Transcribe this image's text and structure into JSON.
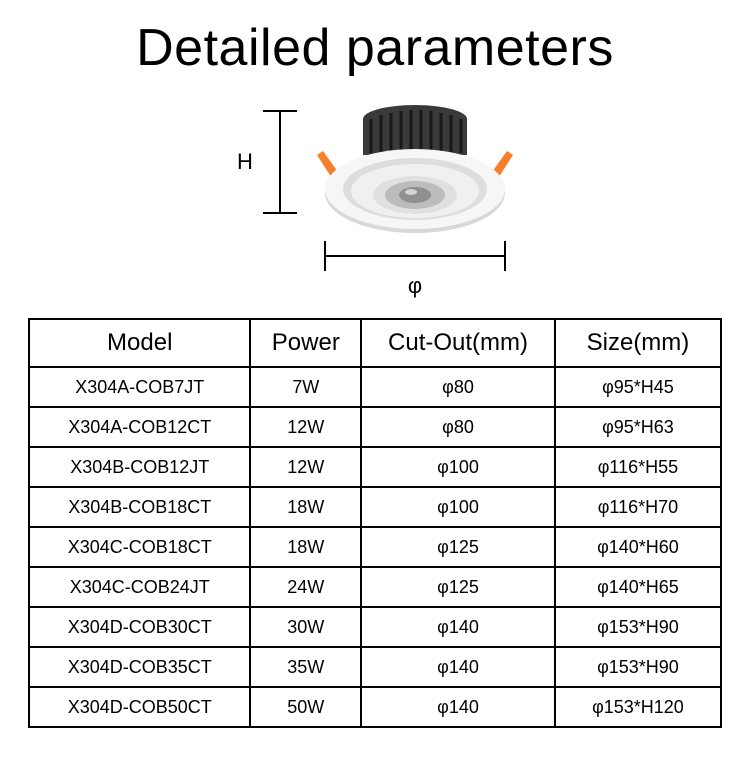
{
  "title": "Detailed parameters",
  "diagram": {
    "height_label": "H",
    "diameter_label": "φ",
    "colors": {
      "heatsink": "#3a3a3a",
      "heatsink_fin": "#2a2a2a",
      "ring_outer": "#f4f4f4",
      "ring_shadow": "#d0d0d0",
      "ring_inner": "#ffffff",
      "lens_outer": "#e8e8e8",
      "lens_inner": "#bfbfbf",
      "lens_center": "#9a9a9a",
      "clip": "#f57f2a",
      "dim_line": "#000000"
    }
  },
  "table": {
    "headers": {
      "model": "Model",
      "power": "Power",
      "cutout": "Cut-Out(mm)",
      "size": "Size(mm)"
    },
    "rows": [
      {
        "model": "X304A-COB7JT",
        "power": "7W",
        "cutout": "φ80",
        "size": "φ95*H45"
      },
      {
        "model": "X304A-COB12CT",
        "power": "12W",
        "cutout": "φ80",
        "size": "φ95*H63"
      },
      {
        "model": "X304B-COB12JT",
        "power": "12W",
        "cutout": "φ100",
        "size": "φ116*H55"
      },
      {
        "model": "X304B-COB18CT",
        "power": "18W",
        "cutout": "φ100",
        "size": "φ116*H70"
      },
      {
        "model": "X304C-COB18CT",
        "power": "18W",
        "cutout": "φ125",
        "size": "φ140*H60"
      },
      {
        "model": "X304C-COB24JT",
        "power": "24W",
        "cutout": "φ125",
        "size": "φ140*H65"
      },
      {
        "model": "X304D-COB30CT",
        "power": "30W",
        "cutout": "φ140",
        "size": "φ153*H90"
      },
      {
        "model": "X304D-COB35CT",
        "power": "35W",
        "cutout": "φ140",
        "size": "φ153*H90"
      },
      {
        "model": "X304D-COB50CT",
        "power": "50W",
        "cutout": "φ140",
        "size": "φ153*H120"
      }
    ]
  }
}
